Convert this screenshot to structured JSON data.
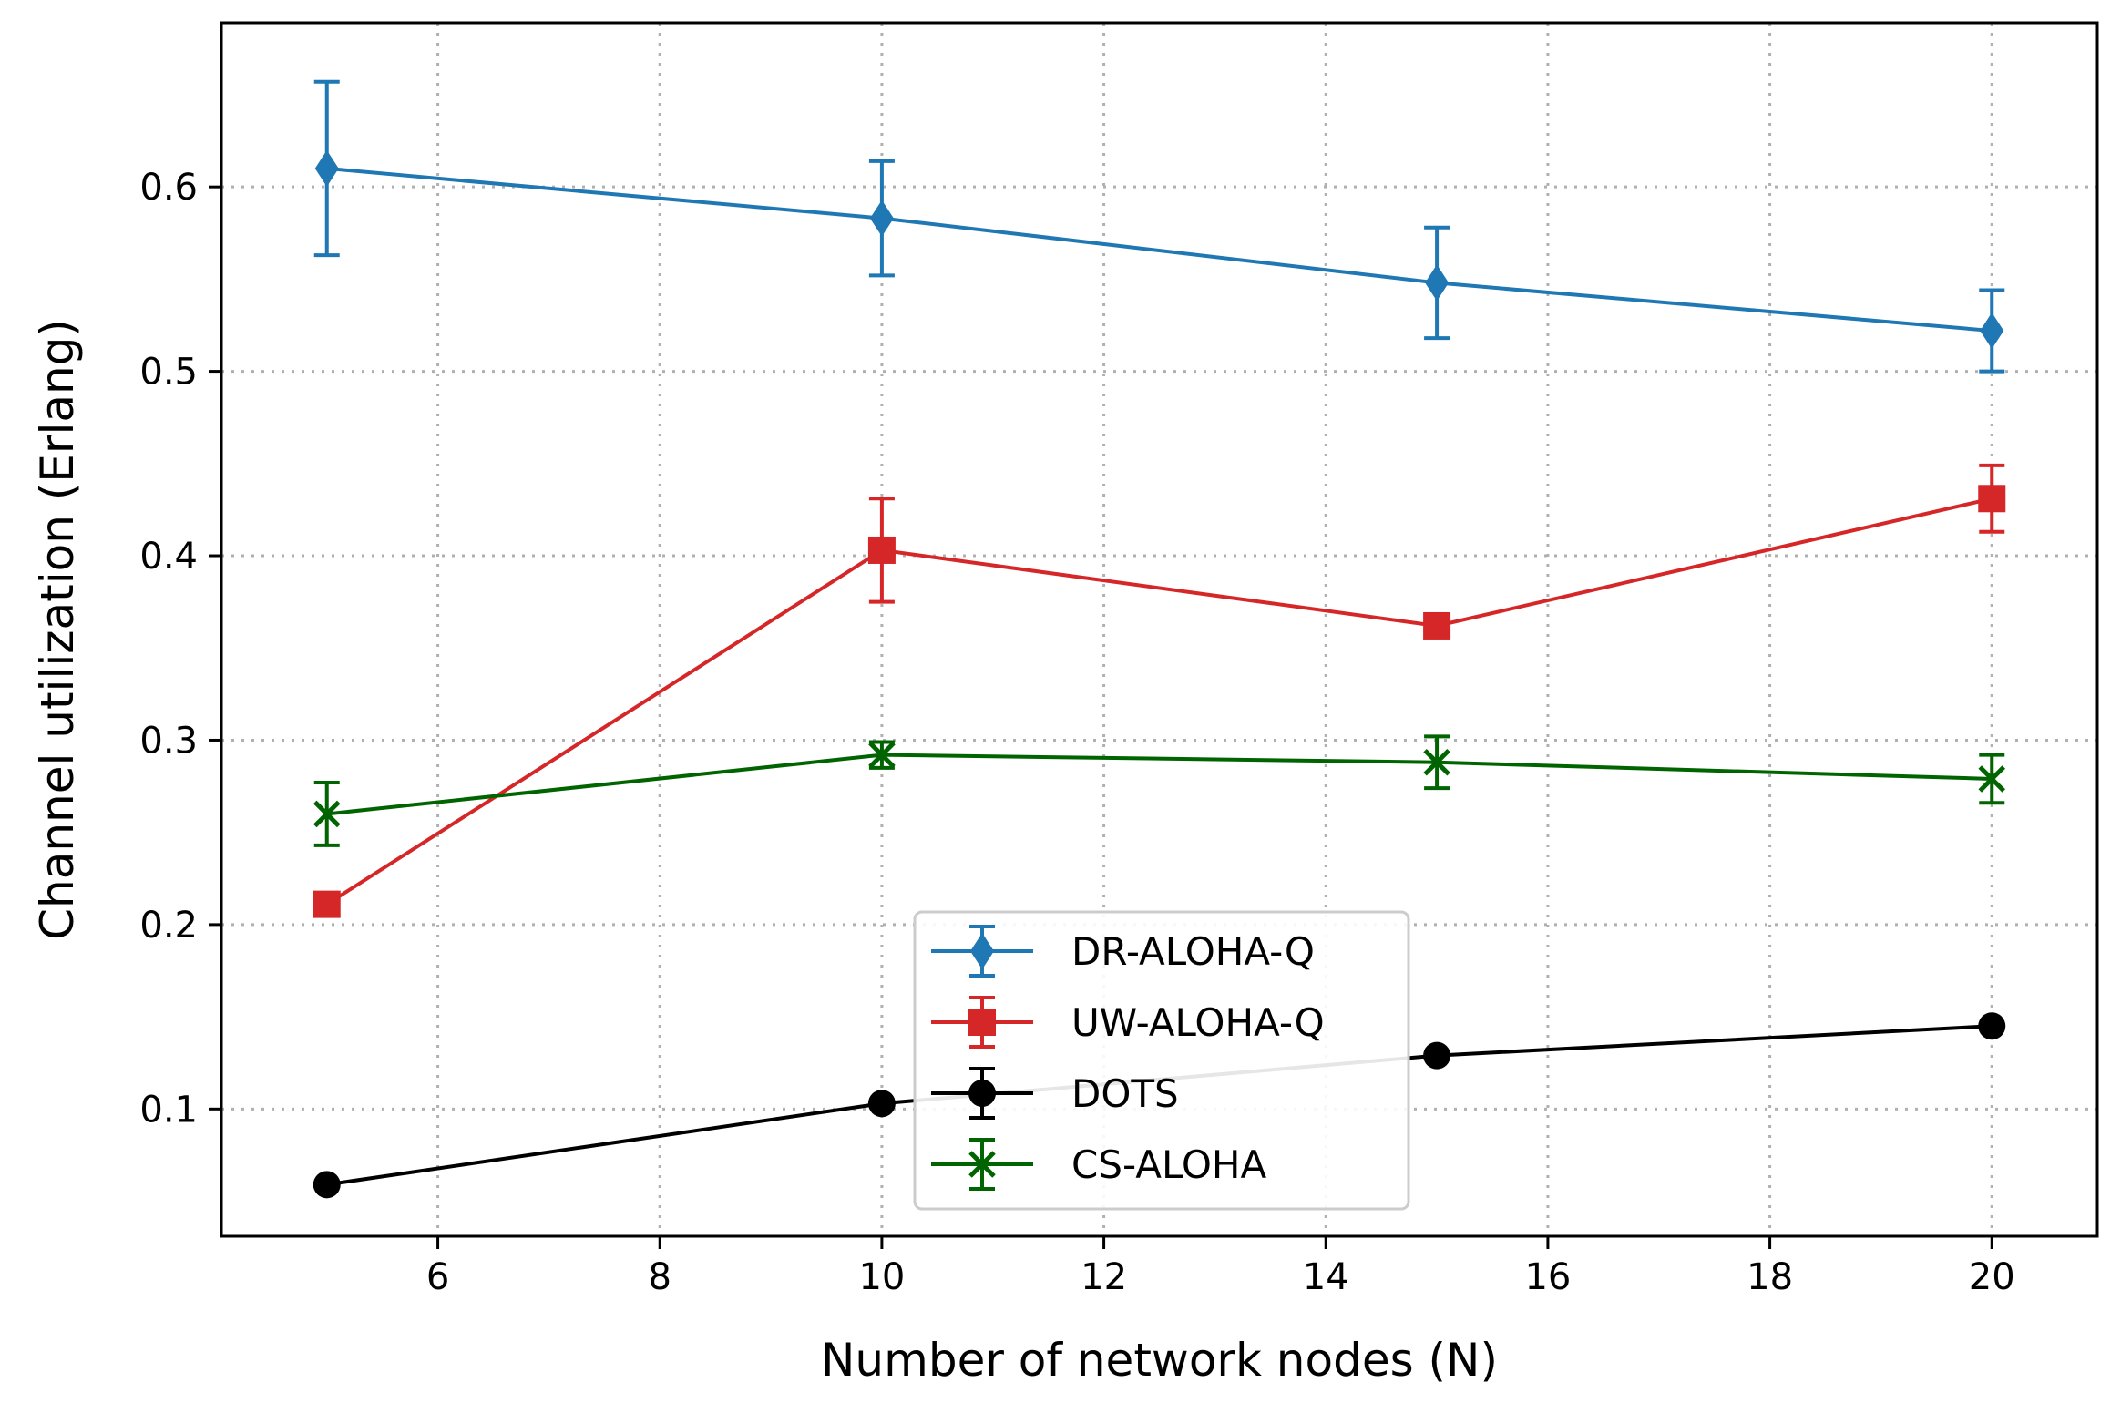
{
  "chart_data": {
    "type": "line",
    "xlabel": "Number of network nodes (N)",
    "ylabel": "Channel utilization (Erlang)",
    "xlim": [
      4.05,
      20.95
    ],
    "ylim": [
      0.031,
      0.689
    ],
    "x_ticks": [
      6,
      8,
      10,
      12,
      14,
      16,
      18,
      20
    ],
    "y_ticks": [
      0.1,
      0.2,
      0.3,
      0.4,
      0.5,
      0.6
    ],
    "x_tick_labels": [
      "6",
      "8",
      "10",
      "12",
      "14",
      "16",
      "18",
      "20"
    ],
    "y_tick_labels": [
      "0.1",
      "0.2",
      "0.3",
      "0.4",
      "0.5",
      "0.6"
    ],
    "grid": true,
    "legend_position": "lower-center",
    "x": [
      5,
      10,
      15,
      20
    ],
    "series": [
      {
        "name": "DR-ALOHA-Q",
        "color": "#1f77b4",
        "marker": "diamond",
        "values": [
          0.61,
          0.583,
          0.548,
          0.522
        ],
        "errors": [
          0.047,
          0.031,
          0.03,
          0.022
        ]
      },
      {
        "name": "UW-ALOHA-Q",
        "color": "#d62728",
        "marker": "square",
        "values": [
          0.211,
          0.403,
          0.362,
          0.431
        ],
        "errors": [
          0.0,
          0.028,
          0.0,
          0.018
        ]
      },
      {
        "name": "DOTS",
        "color": "#000000",
        "marker": "circle",
        "values": [
          0.059,
          0.103,
          0.129,
          0.145
        ],
        "errors": [
          0.0,
          0.0,
          0.0,
          0.0
        ]
      },
      {
        "name": "CS-ALOHA",
        "color": "#006400",
        "marker": "x",
        "values": [
          0.26,
          0.292,
          0.288,
          0.279
        ],
        "errors": [
          0.017,
          0.007,
          0.014,
          0.013
        ]
      }
    ]
  }
}
